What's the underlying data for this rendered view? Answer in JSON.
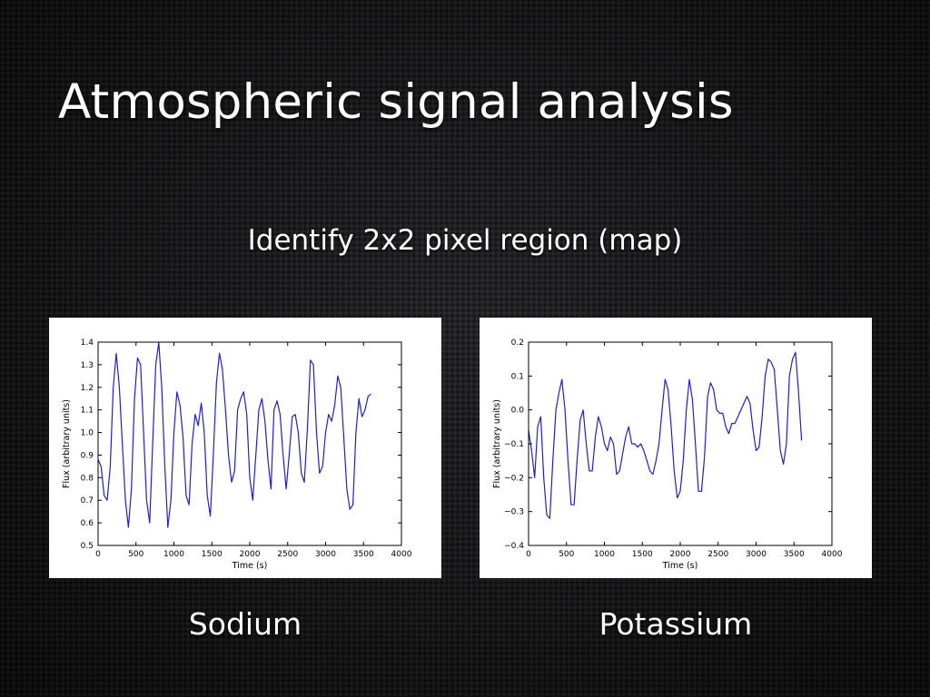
{
  "slide": {
    "title": "Atmospheric signal analysis",
    "subtitle": "Identify 2x2 pixel region (map)"
  },
  "colors": {
    "line": "#1f1fd0",
    "axes": "#000000",
    "text": "#ffffff"
  },
  "captions": [
    "Sodium",
    "Potassium"
  ],
  "chart_data": [
    {
      "type": "line",
      "title": "",
      "xlabel": "Time (s)",
      "ylabel": "Flux (arbitrary units)",
      "xlim": [
        0,
        4000
      ],
      "ylim": [
        0.5,
        1.4
      ],
      "xticks": [
        0,
        500,
        1000,
        1500,
        2000,
        2500,
        3000,
        3500,
        4000
      ],
      "yticks": [
        0.5,
        0.6,
        0.7,
        0.8,
        0.9,
        1.0,
        1.1,
        1.2,
        1.3,
        1.4
      ],
      "ytick_labels": [
        "0.5",
        "0.6",
        "0.7",
        "0.8",
        "0.9",
        "1.0",
        "1.1",
        "1.2",
        "1.3",
        "1.4"
      ],
      "grid": false,
      "series": [
        {
          "x": [
            0,
            40,
            80,
            120,
            160,
            200,
            240,
            280,
            320,
            360,
            400,
            440,
            480,
            520,
            560,
            600,
            640,
            680,
            720,
            760,
            800,
            840,
            880,
            920,
            960,
            1000,
            1040,
            1080,
            1120,
            1160,
            1200,
            1240,
            1280,
            1320,
            1360,
            1400,
            1440,
            1480,
            1520,
            1560,
            1600,
            1640,
            1680,
            1720,
            1760,
            1800,
            1840,
            1880,
            1920,
            1960,
            2000,
            2040,
            2080,
            2120,
            2160,
            2200,
            2240,
            2280,
            2320,
            2360,
            2400,
            2440,
            2480,
            2520,
            2560,
            2600,
            2640,
            2680,
            2720,
            2760,
            2800,
            2840,
            2880,
            2920,
            2960,
            3000,
            3040,
            3080,
            3120,
            3160,
            3200,
            3240,
            3280,
            3320,
            3360,
            3400,
            3440,
            3480,
            3520,
            3560,
            3600
          ],
          "y": [
            0.88,
            0.85,
            0.72,
            0.7,
            0.85,
            1.2,
            1.35,
            1.2,
            0.95,
            0.7,
            0.58,
            0.75,
            1.15,
            1.33,
            1.3,
            1.0,
            0.7,
            0.6,
            0.95,
            1.3,
            1.4,
            1.2,
            0.85,
            0.58,
            0.7,
            1.0,
            1.18,
            1.12,
            0.98,
            0.72,
            0.68,
            0.95,
            1.08,
            1.03,
            1.13,
            1.0,
            0.72,
            0.63,
            0.9,
            1.22,
            1.35,
            1.28,
            1.1,
            0.9,
            0.78,
            0.83,
            1.1,
            1.15,
            1.18,
            1.08,
            0.8,
            0.7,
            0.9,
            1.1,
            1.15,
            1.05,
            0.88,
            0.75,
            1.1,
            1.14,
            1.08,
            0.9,
            0.75,
            0.9,
            1.07,
            1.08,
            1.0,
            0.82,
            0.78,
            1.02,
            1.32,
            1.3,
            1.0,
            0.82,
            0.85,
            1.0,
            1.08,
            1.05,
            1.12,
            1.25,
            1.2,
            0.98,
            0.75,
            0.66,
            0.68,
            1.0,
            1.15,
            1.07,
            1.1,
            1.16,
            1.17
          ]
        }
      ]
    },
    {
      "type": "line",
      "title": "",
      "xlabel": "Time (s)",
      "ylabel": "Flux (arbitrary units)",
      "xlim": [
        0,
        4000
      ],
      "ylim": [
        -0.4,
        0.2
      ],
      "xticks": [
        0,
        500,
        1000,
        1500,
        2000,
        2500,
        3000,
        3500,
        4000
      ],
      "yticks": [
        -0.4,
        -0.3,
        -0.2,
        -0.1,
        0.0,
        0.1,
        0.2
      ],
      "ytick_labels": [
        "−0.4",
        "−0.3",
        "−0.2",
        "−0.1",
        "0.0",
        "0.1",
        "0.2"
      ],
      "grid": false,
      "series": [
        {
          "x": [
            0,
            40,
            80,
            120,
            160,
            200,
            240,
            280,
            320,
            360,
            400,
            440,
            480,
            520,
            560,
            600,
            640,
            680,
            720,
            760,
            800,
            840,
            880,
            920,
            960,
            1000,
            1040,
            1080,
            1120,
            1160,
            1200,
            1240,
            1280,
            1320,
            1360,
            1400,
            1440,
            1480,
            1520,
            1560,
            1600,
            1640,
            1680,
            1720,
            1760,
            1800,
            1840,
            1880,
            1920,
            1960,
            2000,
            2040,
            2080,
            2120,
            2160,
            2200,
            2240,
            2280,
            2320,
            2360,
            2400,
            2440,
            2480,
            2520,
            2560,
            2600,
            2640,
            2680,
            2720,
            2760,
            2800,
            2840,
            2880,
            2920,
            2960,
            3000,
            3040,
            3080,
            3120,
            3160,
            3200,
            3240,
            3280,
            3320,
            3360,
            3400,
            3440,
            3480,
            3520,
            3560,
            3600
          ],
          "y": [
            -0.06,
            -0.12,
            -0.2,
            -0.05,
            -0.02,
            -0.2,
            -0.31,
            -0.32,
            -0.15,
            0.0,
            0.05,
            0.09,
            0.0,
            -0.15,
            -0.28,
            -0.28,
            -0.15,
            -0.03,
            0.0,
            -0.1,
            -0.18,
            -0.18,
            -0.08,
            -0.02,
            -0.05,
            -0.1,
            -0.12,
            -0.08,
            -0.1,
            -0.19,
            -0.18,
            -0.13,
            -0.08,
            -0.05,
            -0.1,
            -0.1,
            -0.11,
            -0.1,
            -0.12,
            -0.15,
            -0.18,
            -0.19,
            -0.15,
            -0.1,
            0.0,
            0.09,
            0.06,
            -0.05,
            -0.18,
            -0.26,
            -0.24,
            -0.15,
            0.0,
            0.09,
            0.03,
            -0.1,
            -0.24,
            -0.24,
            -0.14,
            0.04,
            0.08,
            0.06,
            0.0,
            -0.01,
            -0.01,
            -0.05,
            -0.07,
            -0.04,
            -0.04,
            -0.02,
            0.0,
            0.02,
            0.04,
            0.02,
            -0.06,
            -0.12,
            -0.11,
            -0.02,
            0.1,
            0.15,
            0.14,
            0.12,
            0.0,
            -0.12,
            -0.16,
            -0.1,
            0.1,
            0.15,
            0.17,
            0.05,
            -0.09
          ]
        }
      ]
    }
  ]
}
